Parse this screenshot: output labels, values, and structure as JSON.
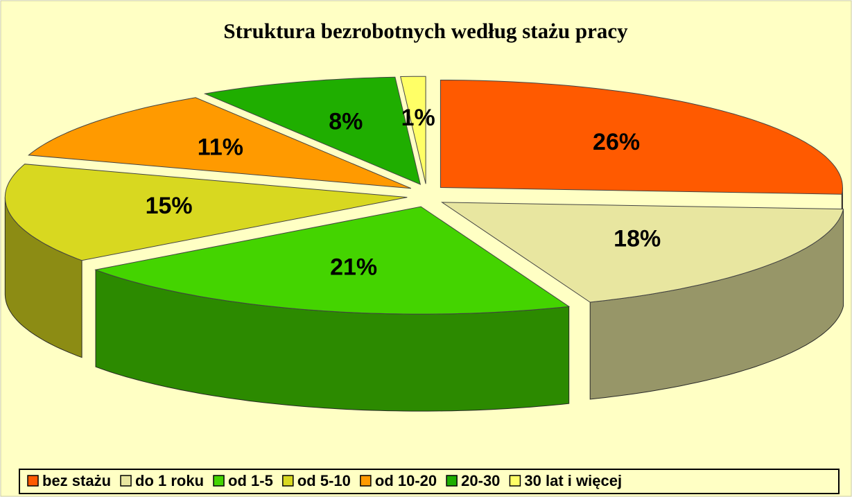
{
  "chart_data": {
    "type": "pie",
    "title": "Struktura bezrobotnych według stażu pracy",
    "categories": [
      "bez stażu",
      "do 1 roku",
      "od 1-5",
      "od 5-10",
      "od 10-20",
      "20-30",
      "30 lat i więcej"
    ],
    "values": [
      26,
      18,
      21,
      15,
      11,
      8,
      1
    ],
    "value_labels": [
      "26%",
      "18%",
      "21%",
      "15%",
      "11%",
      "8%",
      "1%"
    ],
    "colors": [
      "#ff5a00",
      "#e8e6a0",
      "#44d400",
      "#d8d820",
      "#ff9a00",
      "#1fae00",
      "#ffff66"
    ],
    "legend": "bottom"
  }
}
